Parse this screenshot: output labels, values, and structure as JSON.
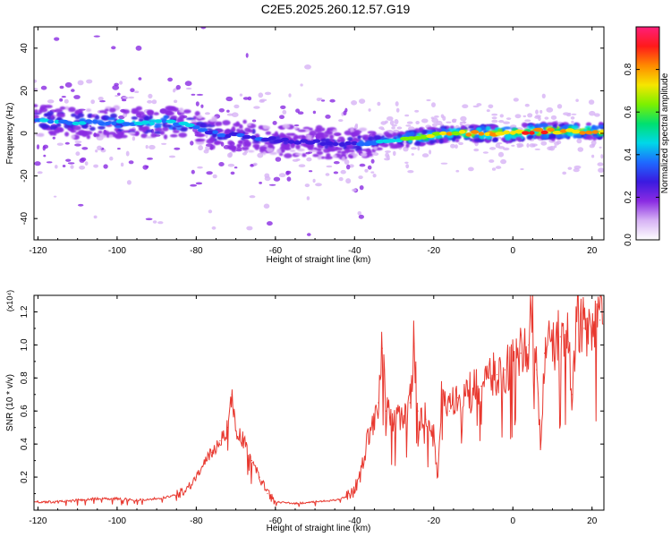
{
  "title": "C2E5.2025.260.12.57.G19",
  "colors": {
    "snr_line": "#e8382f",
    "axis": "#000000",
    "background": "#ffffff",
    "colormap": [
      "#ffffff",
      "#d7b3f5",
      "#8a2be2",
      "#3a1ae0",
      "#1e6aff",
      "#00d8e8",
      "#00e070",
      "#7cf000",
      "#f6e600",
      "#ff8a00",
      "#ff1a1a",
      "#ff1e7a"
    ]
  },
  "chart_data": [
    {
      "type": "heatmap",
      "xlabel": "Height of straight line (km)",
      "ylabel": "Frequency (Hz)",
      "xlim": [
        -121,
        23
      ],
      "ylim": [
        -50,
        50
      ],
      "xticks": [
        "-120",
        "-100",
        "-80",
        "-60",
        "-40",
        "-20",
        "0",
        "20"
      ],
      "xtick_values": [
        -120,
        -100,
        -80,
        -60,
        -40,
        -20,
        0,
        20
      ],
      "yticks": [
        "-40",
        "-20",
        "0",
        "20",
        "40"
      ],
      "ytick_values": [
        -40,
        -20,
        0,
        20,
        40
      ],
      "colorbar": {
        "label": "Normalized spectral amplitude",
        "range": [
          0,
          1
        ],
        "ticks": [
          "0.0",
          "0.2",
          "0.4",
          "0.6",
          "0.8"
        ],
        "tick_values": [
          0.0,
          0.2,
          0.4,
          0.6,
          0.8
        ]
      },
      "ridge": {
        "x": [
          -120,
          -110,
          -100,
          -90,
          -85,
          -80,
          -75,
          -70,
          -65,
          -60,
          -55,
          -50,
          -45,
          -40,
          -35,
          -30,
          -25,
          -20,
          -15,
          -10,
          -5,
          0,
          5,
          10,
          15,
          20,
          23
        ],
        "frequency": [
          6,
          5,
          5,
          5,
          5,
          3,
          0,
          -1,
          -2,
          -3,
          -4,
          -4,
          -5,
          -5,
          -4,
          -3,
          -2,
          -1,
          0,
          0,
          0,
          0,
          1,
          1,
          1,
          1,
          1
        ],
        "peak_amplitude": [
          0.45,
          0.45,
          0.45,
          0.5,
          0.5,
          0.4,
          0.38,
          0.35,
          0.35,
          0.3,
          0.3,
          0.3,
          0.32,
          0.4,
          0.45,
          0.5,
          0.75,
          0.8,
          0.8,
          0.85,
          0.9,
          0.95,
          0.92,
          0.95,
          0.9,
          0.85,
          0.8
        ]
      }
    },
    {
      "type": "line",
      "xlabel": "Height of straight line (km)",
      "ylabel": "SNR (10 * v/v)",
      "y_multiplier": "(x10⁴)",
      "xlim": [
        -121,
        23
      ],
      "ylim": [
        0,
        1.3
      ],
      "xticks": [
        "-120",
        "-100",
        "-80",
        "-60",
        "-40",
        "-20",
        "0",
        "20"
      ],
      "xtick_values": [
        -120,
        -100,
        -80,
        -60,
        -40,
        -20,
        0,
        20
      ],
      "yticks": [
        "0.2",
        "0.4",
        "0.6",
        "0.8",
        "1.0",
        "1.2"
      ],
      "ytick_values": [
        0.2,
        0.4,
        0.6,
        0.8,
        1.0,
        1.2
      ],
      "series": [
        {
          "x": [
            -120,
            -115,
            -110,
            -105,
            -100,
            -95,
            -90,
            -85,
            -82,
            -80,
            -78,
            -76,
            -74,
            -72,
            -71,
            -70,
            -68,
            -66,
            -64,
            -62,
            -60,
            -55,
            -50,
            -45,
            -42,
            -40,
            -38,
            -36,
            -34,
            -33,
            -32,
            -30,
            -28,
            -26,
            -25,
            -24,
            -22,
            -20,
            -19,
            -18,
            -16,
            -14,
            -12,
            -10,
            -8,
            -6,
            -4,
            -2,
            0,
            2,
            4,
            5,
            6,
            7,
            8,
            10,
            12,
            14,
            15,
            16,
            18,
            20,
            22,
            23
          ],
          "y": [
            0.05,
            0.05,
            0.06,
            0.07,
            0.07,
            0.06,
            0.07,
            0.09,
            0.14,
            0.2,
            0.28,
            0.35,
            0.42,
            0.5,
            0.7,
            0.48,
            0.42,
            0.3,
            0.2,
            0.1,
            0.05,
            0.04,
            0.05,
            0.06,
            0.08,
            0.12,
            0.28,
            0.5,
            0.65,
            0.98,
            0.6,
            0.52,
            0.58,
            0.65,
            1.01,
            0.6,
            0.55,
            0.45,
            0.2,
            0.7,
            0.6,
            0.68,
            0.7,
            0.72,
            0.75,
            0.8,
            0.82,
            0.85,
            0.9,
            0.95,
            1.0,
            1.3,
            0.85,
            0.38,
            0.95,
            1.0,
            1.05,
            1.02,
            0.7,
            1.2,
            1.1,
            1.05,
            1.15,
            1.25
          ]
        }
      ]
    }
  ]
}
